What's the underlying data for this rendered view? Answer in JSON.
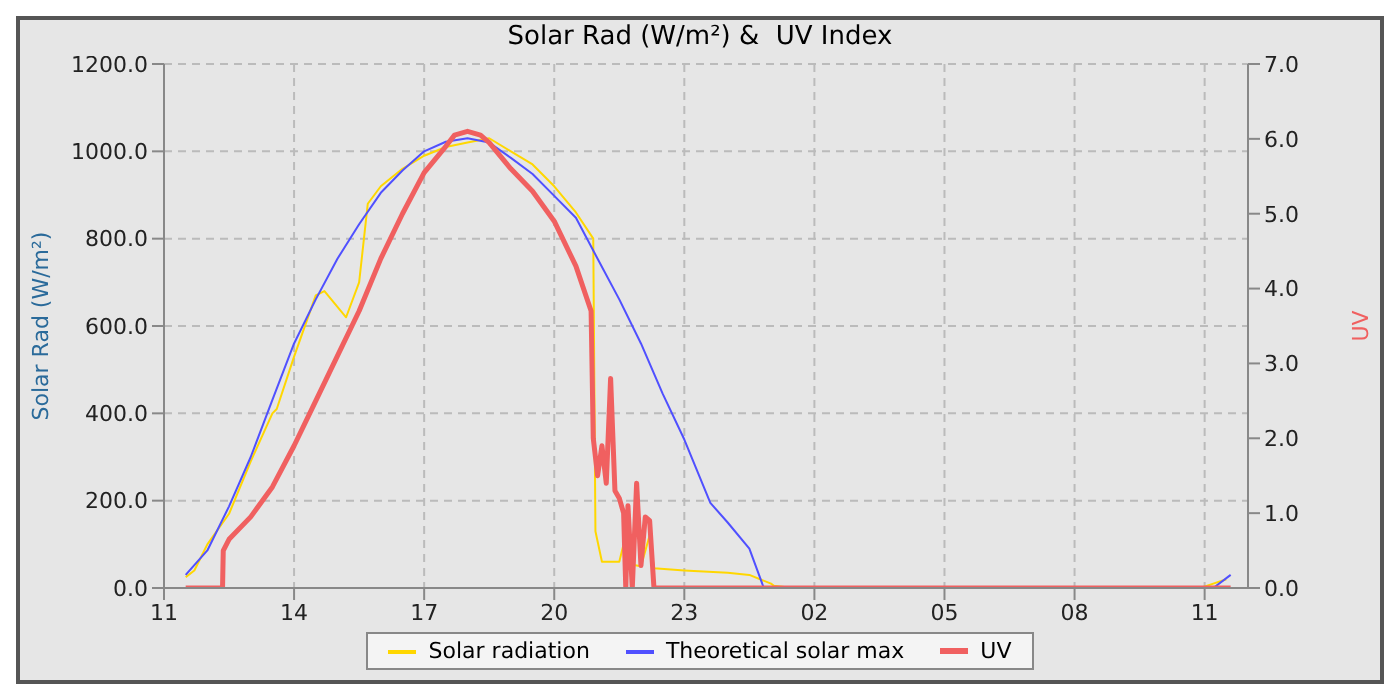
{
  "chart_data": {
    "type": "line",
    "title": "Solar Rad (W/m²) &  UV Index",
    "ylabel": "Solar Rad (W/m²)",
    "y2label": "UV",
    "xlim": [
      "--01-01T11:00",
      "--01-02T12:00"
    ],
    "xticks": [
      {
        "value": "--01-01T11:00",
        "label": "11"
      },
      {
        "value": "--01-01T14:00",
        "label": "14"
      },
      {
        "value": "--01-01T17:00",
        "label": "17"
      },
      {
        "value": "--01-01T20:00",
        "label": "20"
      },
      {
        "value": "--01-01T23:00",
        "label": "23"
      },
      {
        "value": "--01-02T02:00",
        "label": "02"
      },
      {
        "value": "--01-02T05:00",
        "label": "05"
      },
      {
        "value": "--01-02T08:00",
        "label": "08"
      },
      {
        "value": "--01-02T11:00",
        "label": "11"
      }
    ],
    "ylim": [
      0,
      1200
    ],
    "yticks": [
      {
        "value": 0,
        "label": "0.0"
      },
      {
        "value": 200,
        "label": "200.0"
      },
      {
        "value": 400,
        "label": "400.0"
      },
      {
        "value": 600,
        "label": "600.0"
      },
      {
        "value": 800,
        "label": "800.0"
      },
      {
        "value": 1000,
        "label": "1000.0"
      },
      {
        "value": 1200,
        "label": "1200.0"
      }
    ],
    "y2lim": [
      0,
      7
    ],
    "y2ticks": [
      {
        "value": 0,
        "label": "0.0"
      },
      {
        "value": 1,
        "label": "1.0"
      },
      {
        "value": 2,
        "label": "2.0"
      },
      {
        "value": 3,
        "label": "3.0"
      },
      {
        "value": 4,
        "label": "4.0"
      },
      {
        "value": 5,
        "label": "5.0"
      },
      {
        "value": 6,
        "label": "6.0"
      },
      {
        "value": 7,
        "label": "7.0"
      }
    ],
    "grid": true,
    "legend": "bottom",
    "series": [
      {
        "name": "Solar radiation",
        "color": "#ffd700",
        "x": [
          "--01-01T11:30",
          "--01-01T11:42",
          "--01-01T11:48",
          "--01-01T12:00",
          "--01-01T12:30",
          "--01-01T13:00",
          "--01-01T13:30",
          "--01-01T13:36",
          "--01-01T14:00",
          "--01-01T14:30",
          "--01-01T14:42",
          "--01-01T15:12",
          "--01-01T15:30",
          "--01-01T15:42",
          "--01-01T16:00",
          "--01-01T16:30",
          "--01-01T17:00",
          "--01-01T17:30",
          "--01-01T18:00",
          "--01-01T18:30",
          "--01-01T19:00",
          "--01-01T19:30",
          "--01-01T20:00",
          "--01-01T20:30",
          "--01-01T20:54",
          "--01-01T20:57",
          "--01-01T21:06",
          "--01-01T21:30",
          "--01-01T21:36",
          "--01-01T21:42",
          "--01-01T22:00",
          "--01-01T22:12",
          "--01-01T22:18",
          "--01-01T23:00",
          "--01-02T00:00",
          "--01-02T00:30",
          "--01-02T01:00",
          "--01-02T01:04",
          "--01-02T01:30",
          "--01-02T10:54",
          "--01-02T11:12",
          "--01-02T11:30"
        ],
        "values": [
          25,
          40,
          60,
          100,
          170,
          290,
          400,
          410,
          530,
          670,
          680,
          620,
          700,
          880,
          920,
          960,
          990,
          1010,
          1020,
          1030,
          1000,
          970,
          920,
          860,
          800,
          130,
          60,
          60,
          100,
          55,
          50,
          120,
          45,
          40,
          35,
          30,
          10,
          5,
          0,
          0,
          10,
          20
        ]
      },
      {
        "name": "Theoretical solar max",
        "color": "#5050ff",
        "x": [
          "--01-01T11:30",
          "--01-01T12:00",
          "--01-01T12:30",
          "--01-01T13:00",
          "--01-01T13:30",
          "--01-01T14:00",
          "--01-01T14:30",
          "--01-01T15:00",
          "--01-01T15:30",
          "--01-01T16:00",
          "--01-01T16:30",
          "--01-01T17:00",
          "--01-01T17:30",
          "--01-01T18:00",
          "--01-01T18:30",
          "--01-01T19:00",
          "--01-01T19:30",
          "--01-01T20:00",
          "--01-01T20:30",
          "--01-01T21:00",
          "--01-01T21:30",
          "--01-01T22:00",
          "--01-01T22:30",
          "--01-01T23:00",
          "--01-01T23:36",
          "--01-02T00:00",
          "--01-02T00:30",
          "--01-02T00:50",
          "--01-02T11:12",
          "--01-02T11:36"
        ],
        "values": [
          30,
          86,
          187,
          300,
          431,
          560,
          661,
          754,
          833,
          905,
          956,
          1000,
          1022,
          1030,
          1020,
          985,
          948,
          898,
          848,
          754,
          661,
          560,
          445,
          340,
          195,
          150,
          90,
          0,
          0,
          30
        ]
      },
      {
        "name": "UV",
        "color": "#f06060",
        "axis": "y2",
        "x": [
          "--01-01T11:30",
          "--01-01T12:21",
          "--01-01T12:22",
          "--01-01T12:30",
          "--01-01T13:00",
          "--01-01T13:30",
          "--01-01T14:00",
          "--01-01T14:30",
          "--01-01T15:00",
          "--01-01T15:30",
          "--01-01T16:00",
          "--01-01T16:30",
          "--01-01T17:00",
          "--01-01T17:30",
          "--01-01T17:42",
          "--01-01T18:00",
          "--01-01T18:18",
          "--01-01T18:30",
          "--01-01T19:00",
          "--01-01T19:30",
          "--01-01T20:00",
          "--01-01T20:30",
          "--01-01T20:51",
          "--01-01T20:54",
          "--01-01T21:00",
          "--01-01T21:06",
          "--01-01T21:12",
          "--01-01T21:18",
          "--01-01T21:24",
          "--01-01T21:30",
          "--01-01T21:36",
          "--01-01T21:39",
          "--01-01T21:42",
          "--01-01T21:48",
          "--01-01T21:54",
          "--01-01T22:00",
          "--01-01T22:06",
          "--01-01T22:12",
          "--01-01T22:18",
          "--01-02T11:36"
        ],
        "values": [
          0,
          0,
          0.5,
          0.65,
          0.95,
          1.35,
          1.9,
          2.5,
          3.1,
          3.7,
          4.4,
          5,
          5.55,
          5.9,
          6.05,
          6.1,
          6.05,
          5.95,
          5.6,
          5.3,
          4.9,
          4.3,
          3.7,
          2,
          1.5,
          1.9,
          1.4,
          2.8,
          1.3,
          1.2,
          1,
          0,
          1.1,
          0,
          1.4,
          0.3,
          0.95,
          0.9,
          0,
          0
        ]
      }
    ]
  }
}
